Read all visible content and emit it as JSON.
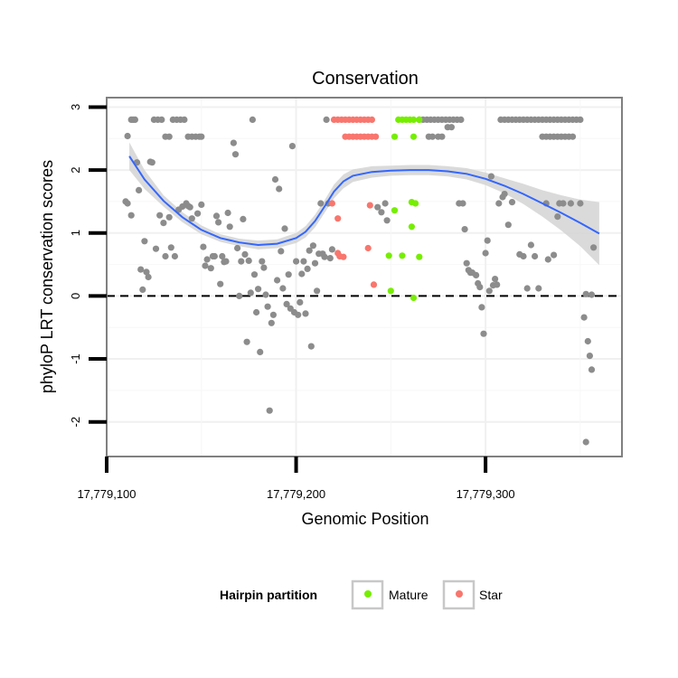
{
  "chart_data": {
    "type": "scatter",
    "title": "Conservation",
    "xlabel": "Genomic Position",
    "ylabel": "phyloP LRT conservation scores",
    "xlim": [
      17779100,
      17779372
    ],
    "ylim": [
      -2.55,
      3.15
    ],
    "x_ticks": [
      17779100,
      17779200,
      17779300
    ],
    "x_tick_labels": [
      "17,779,100",
      "17,779,200",
      "17,779,300"
    ],
    "y_ticks": [
      -2,
      -1,
      0,
      1,
      2,
      3
    ],
    "y_tick_labels": [
      "-2",
      "-1",
      "0",
      "1",
      "2",
      "3"
    ],
    "grid": true,
    "reference_line": {
      "y": 0,
      "style": "dashed"
    },
    "legend": {
      "title": "Hairpin partition",
      "position": "bottom",
      "entries": [
        {
          "label": "Mature",
          "color": "#76ee00"
        },
        {
          "label": "Star",
          "color": "#f8766d"
        }
      ]
    },
    "colors": {
      "other": "#8c8c8c",
      "Mature": "#76ee00",
      "Star": "#f8766d",
      "smooth_line": "#3366ff",
      "ribbon": "#d3d3d3"
    },
    "series": [
      {
        "name": "",
        "points": [
          [
            17779111,
            2.54
          ],
          [
            17779113,
            2.8
          ],
          [
            17779114,
            2.8
          ],
          [
            17779115,
            2.8
          ],
          [
            17779110,
            1.5
          ],
          [
            17779111,
            1.47
          ],
          [
            17779113,
            1.28
          ],
          [
            17779116,
            2.12
          ],
          [
            17779117,
            1.68
          ],
          [
            17779118,
            0.42
          ],
          [
            17779119,
            0.1
          ],
          [
            17779120,
            0.87
          ],
          [
            17779121,
            0.38
          ],
          [
            17779122,
            0.3
          ],
          [
            17779123,
            2.13
          ],
          [
            17779124,
            2.12
          ],
          [
            17779125,
            2.8
          ],
          [
            17779127,
            2.8
          ],
          [
            17779129,
            2.8
          ],
          [
            17779131,
            2.53
          ],
          [
            17779133,
            2.53
          ],
          [
            17779135,
            2.8
          ],
          [
            17779137,
            2.8
          ],
          [
            17779139,
            2.8
          ],
          [
            17779141,
            2.8
          ],
          [
            17779143,
            2.53
          ],
          [
            17779145,
            2.53
          ],
          [
            17779147,
            2.53
          ],
          [
            17779149,
            2.53
          ],
          [
            17779150,
            2.53
          ],
          [
            17779126,
            0.75
          ],
          [
            17779128,
            1.28
          ],
          [
            17779130,
            1.16
          ],
          [
            17779131,
            0.63
          ],
          [
            17779133,
            1.25
          ],
          [
            17779134,
            0.77
          ],
          [
            17779136,
            0.63
          ],
          [
            17779138,
            1.37
          ],
          [
            17779140,
            1.42
          ],
          [
            17779142,
            1.47
          ],
          [
            17779143,
            1.43
          ],
          [
            17779144,
            1.41
          ],
          [
            17779145,
            1.23
          ],
          [
            17779148,
            1.31
          ],
          [
            17779150,
            1.45
          ],
          [
            17779151,
            0.78
          ],
          [
            17779152,
            0.48
          ],
          [
            17779153,
            0.58
          ],
          [
            17779155,
            0.44
          ],
          [
            17779156,
            0.63
          ],
          [
            17779157,
            0.63
          ],
          [
            17779158,
            1.27
          ],
          [
            17779159,
            1.17
          ],
          [
            17779160,
            0.19
          ],
          [
            17779161,
            0.63
          ],
          [
            17779162,
            0.54
          ],
          [
            17779163,
            0.55
          ],
          [
            17779164,
            1.32
          ],
          [
            17779165,
            1.1
          ],
          [
            17779167,
            2.43
          ],
          [
            17779168,
            2.25
          ],
          [
            17779169,
            0.76
          ],
          [
            17779170,
            0.0
          ],
          [
            17779171,
            0.55
          ],
          [
            17779172,
            1.22
          ],
          [
            17779173,
            0.66
          ],
          [
            17779174,
            -0.73
          ],
          [
            17779175,
            0.56
          ],
          [
            17779176,
            0.05
          ],
          [
            17779177,
            2.8
          ],
          [
            17779178,
            0.34
          ],
          [
            17779179,
            -0.26
          ],
          [
            17779180,
            0.11
          ],
          [
            17779181,
            -0.89
          ],
          [
            17779182,
            0.55
          ],
          [
            17779183,
            0.45
          ],
          [
            17779184,
            0.02
          ],
          [
            17779185,
            -0.17
          ],
          [
            17779186,
            -1.82
          ],
          [
            17779187,
            -0.43
          ],
          [
            17779188,
            -0.3
          ],
          [
            17779189,
            1.85
          ],
          [
            17779190,
            0.25
          ],
          [
            17779191,
            1.7
          ],
          [
            17779192,
            0.71
          ],
          [
            17779193,
            0.12
          ],
          [
            17779194,
            1.07
          ],
          [
            17779195,
            -0.13
          ],
          [
            17779196,
            0.34
          ],
          [
            17779197,
            -0.2
          ],
          [
            17779198,
            2.38
          ],
          [
            17779199,
            -0.26
          ],
          [
            17779200,
            0.55
          ],
          [
            17779201,
            -0.3
          ],
          [
            17779202,
            -0.1
          ],
          [
            17779203,
            0.35
          ],
          [
            17779204,
            0.55
          ],
          [
            17779205,
            -0.28
          ],
          [
            17779206,
            0.43
          ],
          [
            17779207,
            0.72
          ],
          [
            17779208,
            -0.8
          ],
          [
            17779209,
            0.8
          ],
          [
            17779210,
            0.52
          ],
          [
            17779211,
            0.08
          ],
          [
            17779212,
            0.67
          ],
          [
            17779213,
            1.47
          ],
          [
            17779214,
            0.67
          ],
          [
            17779215,
            0.62
          ],
          [
            17779216,
            2.8
          ],
          [
            17779217,
            1.47
          ],
          [
            17779218,
            0.6
          ],
          [
            17779219,
            0.74
          ],
          [
            17779243,
            1.41
          ],
          [
            17779245,
            1.33
          ],
          [
            17779247,
            1.47
          ],
          [
            17779248,
            1.2
          ],
          [
            17779265,
            2.8
          ],
          [
            17779267,
            2.8
          ],
          [
            17779269,
            2.8
          ],
          [
            17779271,
            2.8
          ],
          [
            17779273,
            2.8
          ],
          [
            17779275,
            2.8
          ],
          [
            17779277,
            2.8
          ],
          [
            17779279,
            2.8
          ],
          [
            17779281,
            2.8
          ],
          [
            17779283,
            2.8
          ],
          [
            17779285,
            2.8
          ],
          [
            17779287,
            2.8
          ],
          [
            17779270,
            2.53
          ],
          [
            17779272,
            2.53
          ],
          [
            17779275,
            2.53
          ],
          [
            17779277,
            2.53
          ],
          [
            17779280,
            2.68
          ],
          [
            17779282,
            2.68
          ],
          [
            17779286,
            1.47
          ],
          [
            17779288,
            1.47
          ],
          [
            17779289,
            1.06
          ],
          [
            17779290,
            0.52
          ],
          [
            17779291,
            0.41
          ],
          [
            17779292,
            0.37
          ],
          [
            17779293,
            0.37
          ],
          [
            17779295,
            0.33
          ],
          [
            17779296,
            0.2
          ],
          [
            17779297,
            0.14
          ],
          [
            17779298,
            -0.18
          ],
          [
            17779299,
            -0.6
          ],
          [
            17779300,
            0.68
          ],
          [
            17779301,
            0.88
          ],
          [
            17779302,
            0.08
          ],
          [
            17779303,
            1.9
          ],
          [
            17779304,
            0.17
          ],
          [
            17779305,
            0.27
          ],
          [
            17779306,
            0.18
          ],
          [
            17779307,
            1.47
          ],
          [
            17779309,
            1.57
          ],
          [
            17779310,
            1.62
          ],
          [
            17779312,
            1.13
          ],
          [
            17779308,
            2.8
          ],
          [
            17779310,
            2.8
          ],
          [
            17779312,
            2.8
          ],
          [
            17779314,
            2.8
          ],
          [
            17779316,
            2.8
          ],
          [
            17779318,
            2.8
          ],
          [
            17779320,
            2.8
          ],
          [
            17779322,
            2.8
          ],
          [
            17779324,
            2.8
          ],
          [
            17779326,
            2.8
          ],
          [
            17779328,
            2.8
          ],
          [
            17779330,
            2.8
          ],
          [
            17779332,
            2.8
          ],
          [
            17779334,
            2.8
          ],
          [
            17779336,
            2.8
          ],
          [
            17779338,
            2.8
          ],
          [
            17779340,
            2.8
          ],
          [
            17779342,
            2.8
          ],
          [
            17779344,
            2.8
          ],
          [
            17779346,
            2.8
          ],
          [
            17779348,
            2.8
          ],
          [
            17779350,
            2.8
          ],
          [
            17779330,
            2.53
          ],
          [
            17779332,
            2.53
          ],
          [
            17779334,
            2.53
          ],
          [
            17779336,
            2.53
          ],
          [
            17779338,
            2.53
          ],
          [
            17779340,
            2.53
          ],
          [
            17779342,
            2.53
          ],
          [
            17779344,
            2.53
          ],
          [
            17779346,
            2.53
          ],
          [
            17779314,
            1.49
          ],
          [
            17779318,
            0.66
          ],
          [
            17779320,
            0.63
          ],
          [
            17779322,
            0.12
          ],
          [
            17779324,
            0.81
          ],
          [
            17779326,
            0.63
          ],
          [
            17779328,
            0.12
          ],
          [
            17779332,
            1.47
          ],
          [
            17779333,
            0.58
          ],
          [
            17779336,
            0.65
          ],
          [
            17779338,
            1.26
          ],
          [
            17779339,
            1.47
          ],
          [
            17779341,
            1.47
          ],
          [
            17779345,
            1.47
          ],
          [
            17779350,
            1.47
          ],
          [
            17779352,
            -0.34
          ],
          [
            17779353,
            0.03
          ],
          [
            17779354,
            -0.72
          ],
          [
            17779355,
            -0.95
          ],
          [
            17779356,
            -1.17
          ],
          [
            17779357,
            0.77
          ],
          [
            17779353,
            -2.32
          ],
          [
            17779356,
            0.02
          ]
        ]
      },
      {
        "name": "Star",
        "points": [
          [
            17779220,
            2.8
          ],
          [
            17779222,
            2.8
          ],
          [
            17779224,
            2.8
          ],
          [
            17779226,
            2.8
          ],
          [
            17779228,
            2.8
          ],
          [
            17779230,
            2.8
          ],
          [
            17779232,
            2.8
          ],
          [
            17779234,
            2.8
          ],
          [
            17779236,
            2.8
          ],
          [
            17779238,
            2.8
          ],
          [
            17779240,
            2.8
          ],
          [
            17779226,
            2.53
          ],
          [
            17779228,
            2.53
          ],
          [
            17779230,
            2.53
          ],
          [
            17779232,
            2.53
          ],
          [
            17779234,
            2.53
          ],
          [
            17779236,
            2.53
          ],
          [
            17779238,
            2.53
          ],
          [
            17779240,
            2.53
          ],
          [
            17779242,
            2.53
          ],
          [
            17779219,
            1.47
          ],
          [
            17779222,
            1.23
          ],
          [
            17779222,
            0.68
          ],
          [
            17779223,
            0.63
          ],
          [
            17779225,
            0.62
          ],
          [
            17779238,
            0.76
          ],
          [
            17779239,
            1.44
          ],
          [
            17779241,
            0.18
          ]
        ]
      },
      {
        "name": "Mature",
        "points": [
          [
            17779254,
            2.8
          ],
          [
            17779256,
            2.8
          ],
          [
            17779258,
            2.8
          ],
          [
            17779260,
            2.8
          ],
          [
            17779262,
            2.8
          ],
          [
            17779265,
            2.8
          ],
          [
            17779252,
            2.53
          ],
          [
            17779262,
            2.53
          ],
          [
            17779252,
            1.36
          ],
          [
            17779261,
            1.49
          ],
          [
            17779263,
            1.47
          ],
          [
            17779261,
            1.1
          ],
          [
            17779249,
            0.64
          ],
          [
            17779256,
            0.64
          ],
          [
            17779265,
            0.62
          ],
          [
            17779250,
            0.08
          ],
          [
            17779262,
            -0.03
          ]
        ]
      }
    ],
    "smooth": {
      "x": [
        17779112,
        17779120,
        17779130,
        17779140,
        17779150,
        17779160,
        17779170,
        17779180,
        17779190,
        17779200,
        17779205,
        17779210,
        17779215,
        17779220,
        17779225,
        17779230,
        17779240,
        17779250,
        17779260,
        17779270,
        17779280,
        17779290,
        17779300,
        17779310,
        17779320,
        17779330,
        17779340,
        17779350,
        17779360
      ],
      "y": [
        2.22,
        1.85,
        1.51,
        1.25,
        1.05,
        0.92,
        0.85,
        0.81,
        0.83,
        0.92,
        1.02,
        1.19,
        1.42,
        1.66,
        1.82,
        1.91,
        1.97,
        1.99,
        2.0,
        2.0,
        1.98,
        1.94,
        1.86,
        1.75,
        1.62,
        1.47,
        1.32,
        1.16,
        0.99
      ],
      "lower": [
        2.0,
        1.7,
        1.42,
        1.17,
        0.98,
        0.86,
        0.79,
        0.74,
        0.76,
        0.84,
        0.93,
        1.09,
        1.32,
        1.55,
        1.71,
        1.81,
        1.88,
        1.91,
        1.92,
        1.92,
        1.9,
        1.85,
        1.76,
        1.63,
        1.46,
        1.26,
        1.04,
        0.79,
        0.49
      ],
      "upper": [
        2.44,
        2.0,
        1.6,
        1.33,
        1.12,
        0.98,
        0.91,
        0.88,
        0.9,
        1.0,
        1.11,
        1.29,
        1.52,
        1.77,
        1.93,
        2.01,
        2.06,
        2.07,
        2.08,
        2.08,
        2.06,
        2.03,
        1.96,
        1.87,
        1.78,
        1.68,
        1.6,
        1.53,
        1.49
      ]
    }
  }
}
